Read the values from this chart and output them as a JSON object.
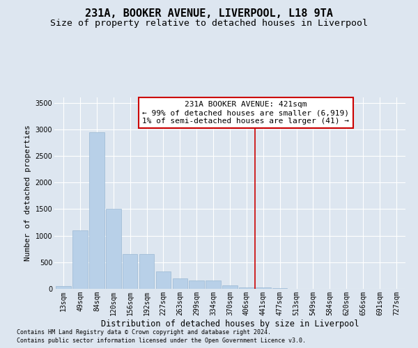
{
  "title": "231A, BOOKER AVENUE, LIVERPOOL, L18 9TA",
  "subtitle": "Size of property relative to detached houses in Liverpool",
  "xlabel": "Distribution of detached houses by size in Liverpool",
  "ylabel": "Number of detached properties",
  "footnote1": "Contains HM Land Registry data © Crown copyright and database right 2024.",
  "footnote2": "Contains public sector information licensed under the Open Government Licence v3.0.",
  "annotation_line1": "231A BOOKER AVENUE: 421sqm",
  "annotation_line2": "← 99% of detached houses are smaller (6,919)",
  "annotation_line3": "1% of semi-detached houses are larger (41) →",
  "bar_color": "#b8d0e8",
  "bar_edge_color": "#9ab8d4",
  "line_color": "#cc0000",
  "box_edge_color": "#cc0000",
  "background_color": "#dde6f0",
  "categories": [
    "13sqm",
    "49sqm",
    "84sqm",
    "120sqm",
    "156sqm",
    "192sqm",
    "227sqm",
    "263sqm",
    "299sqm",
    "334sqm",
    "370sqm",
    "406sqm",
    "441sqm",
    "477sqm",
    "513sqm",
    "549sqm",
    "584sqm",
    "620sqm",
    "656sqm",
    "691sqm",
    "727sqm"
  ],
  "values": [
    50,
    1100,
    2950,
    1500,
    650,
    650,
    330,
    200,
    155,
    155,
    70,
    30,
    25,
    8,
    4,
    2,
    1,
    0,
    0,
    0,
    0
  ],
  "ylim": [
    0,
    3600
  ],
  "yticks": [
    0,
    500,
    1000,
    1500,
    2000,
    2500,
    3000,
    3500
  ],
  "red_line_bin_index": 11.5,
  "title_fontsize": 11,
  "subtitle_fontsize": 9.5,
  "xlabel_fontsize": 8.5,
  "ylabel_fontsize": 8,
  "tick_fontsize": 7,
  "annotation_fontsize": 8,
  "footnote_fontsize": 6
}
